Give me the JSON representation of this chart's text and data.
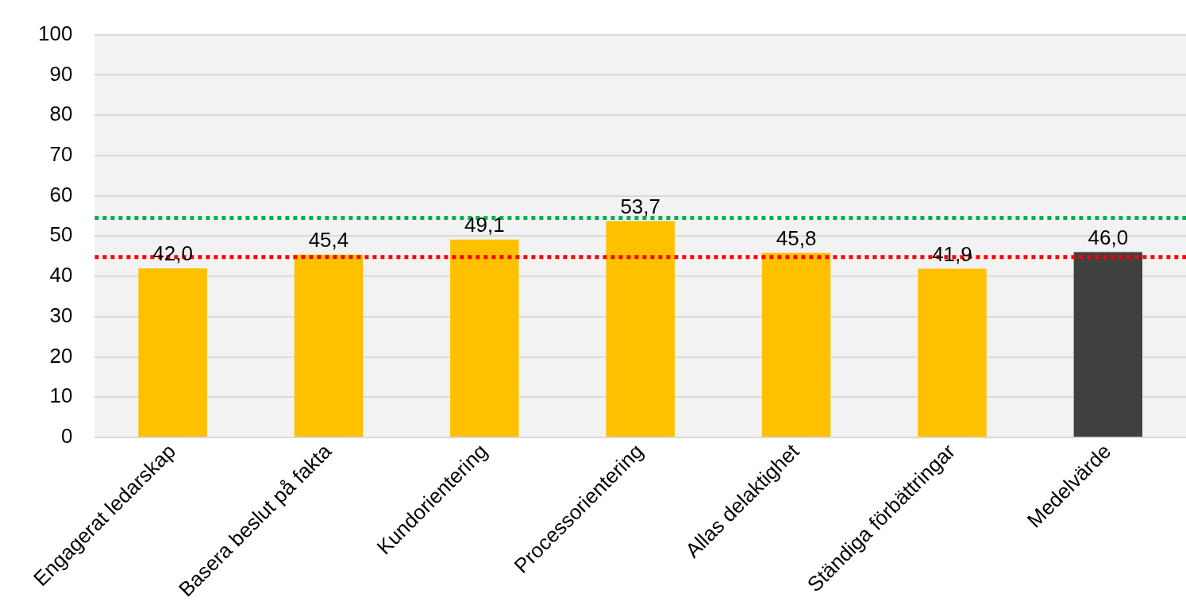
{
  "chart_data": {
    "type": "bar",
    "categories": [
      "Engagerat ledarskap",
      "Basera beslut på fakta",
      "Kundorientering",
      "Processorientering",
      "Allas delaktighet",
      "Ständiga förbättringar",
      "Medelvärde"
    ],
    "values": [
      42.0,
      45.4,
      49.1,
      53.7,
      45.8,
      41.9,
      46.0
    ],
    "colors": [
      "#ffc000",
      "#ffc000",
      "#ffc000",
      "#ffc000",
      "#ffc000",
      "#ffc000",
      "#404040"
    ],
    "value_labels": [
      "42,0",
      "45,4",
      "49,1",
      "53,7",
      "45,8",
      "41,9",
      "46,0"
    ],
    "ylim": [
      0,
      100
    ],
    "yticks": [
      0,
      10,
      20,
      30,
      40,
      50,
      60,
      70,
      80,
      90,
      100
    ],
    "grid": "y",
    "legend": false,
    "ref_lines": [
      {
        "axis": "y",
        "value": 54.5,
        "color": "#00b050",
        "line_style": "dotted"
      },
      {
        "axis": "y",
        "value": 44.8,
        "color": "#ff0000",
        "line_style": "dotted"
      }
    ]
  }
}
